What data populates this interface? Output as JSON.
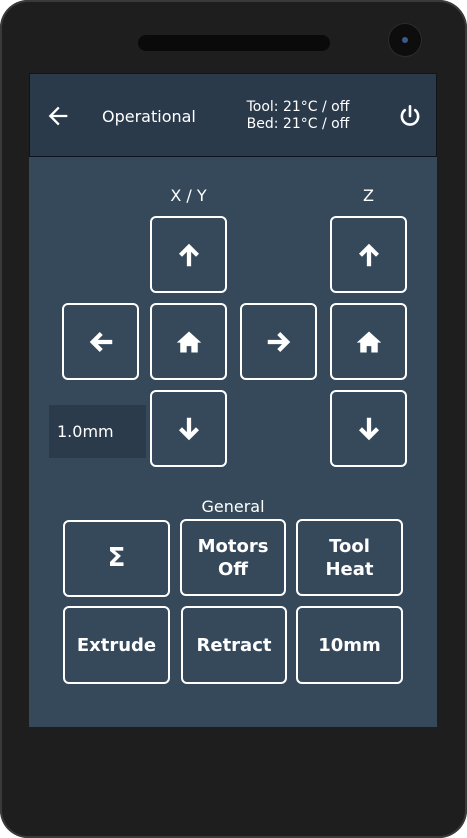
{
  "header": {
    "status": "Operational",
    "tool_temp": "Tool: 21°C / off",
    "bed_temp": "Bed: 21°C / off"
  },
  "sections": {
    "xy_label": "X / Y",
    "z_label": "Z",
    "general_label": "General"
  },
  "step_size": "1.0mm",
  "general_buttons": {
    "sum": "Σ",
    "motors_off": "Motors\nOff",
    "tool_heat": "Tool\nHeat",
    "extrude": "Extrude",
    "retract": "Retract",
    "amount": "10mm"
  },
  "colors": {
    "screen_bg": "#36495b",
    "header_bg": "#2b3a4b",
    "button_border": "#ffffff"
  },
  "icons": {
    "back": "arrow-left-icon",
    "power": "power-icon",
    "up": "arrow-up-icon",
    "down": "arrow-down-icon",
    "left": "arrow-left-icon",
    "right": "arrow-right-icon",
    "home": "home-icon"
  }
}
